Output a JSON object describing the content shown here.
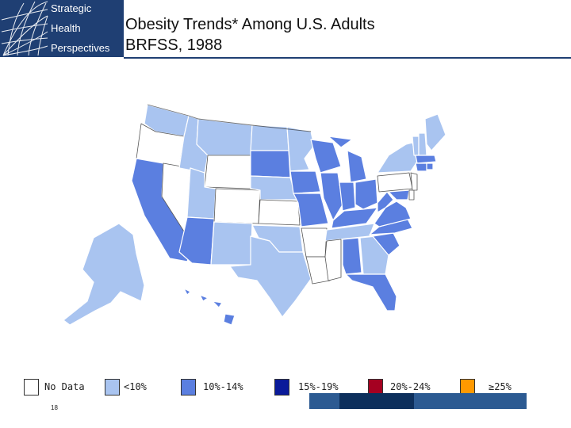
{
  "logo": {
    "lines": [
      "Strategic",
      "Health",
      "Perspectives"
    ]
  },
  "title": {
    "line1": "Obesity Trends* Among U.S. Adults",
    "line2": "BRFSS, 1988"
  },
  "colors": {
    "no_data": "#ffffff",
    "lt10": "#a9c4f0",
    "10_14": "#5b7fe0",
    "15_19": "#0a1a9a",
    "20_24": "#a50021",
    "ge25": "#ff9900",
    "logo_bg": "#1f3f73",
    "bar_mid": "#2c5a92",
    "bar_dark": "#0d2f5c"
  },
  "legend": [
    {
      "label": "No Data",
      "color_key": "no_data"
    },
    {
      "label": "<10%",
      "color_key": "lt10"
    },
    {
      "label": "10%-14%",
      "color_key": "10_14"
    },
    {
      "label": "15%-19%",
      "color_key": "15_19"
    },
    {
      "label": "20%-24%",
      "color_key": "20_24"
    },
    {
      "label": "≥25%",
      "color_key": "ge25"
    }
  ],
  "page_number": "18",
  "state_categories": {
    "lt10": [
      "WA",
      "MT",
      "ND",
      "ID",
      "UT",
      "NM",
      "TX",
      "OK",
      "NE",
      "MN",
      "GA",
      "TN",
      "NY",
      "NH",
      "ME",
      "VT",
      "AK"
    ],
    "10_14": [
      "CA",
      "AZ",
      "SD",
      "IA",
      "WI",
      "MI",
      "IL",
      "IN",
      "OH",
      "MO",
      "KY",
      "WV",
      "AL",
      "FL",
      "SC",
      "NC",
      "MD",
      "VA",
      "HI",
      "MA",
      "RI",
      "CT"
    ],
    "no_data": [
      "OR",
      "NV",
      "WY",
      "CO",
      "KS",
      "AR",
      "LA",
      "MS",
      "PA",
      "NJ",
      "DE"
    ]
  }
}
